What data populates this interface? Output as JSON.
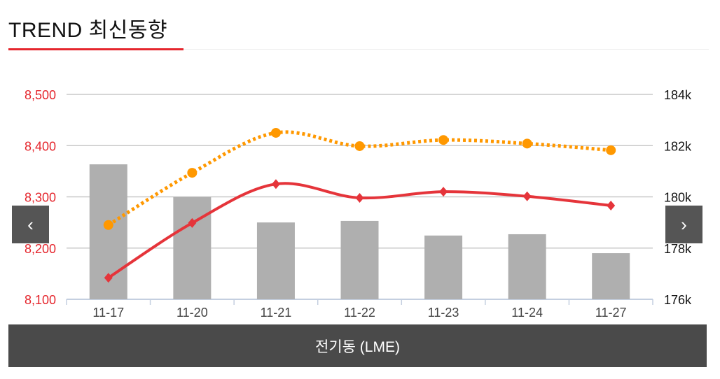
{
  "header": {
    "title": "TREND 최신동향"
  },
  "footer": {
    "label": "전기동 (LME)"
  },
  "nav": {
    "prev_icon": "‹",
    "next_icon": "›"
  },
  "colors": {
    "line1": "#e5343a",
    "line2": "#ff9800",
    "bar": "#afafaf",
    "left_axis": "#e5262d"
  },
  "chart_data": {
    "type": "bar+line",
    "categories": [
      "11-17",
      "11-20",
      "11-21",
      "11-22",
      "11-23",
      "11-24",
      "11-27"
    ],
    "left_axis": {
      "ticks": [
        "8,100",
        "8,200",
        "8,300",
        "8,400",
        "8,500"
      ],
      "range": [
        8100,
        8500
      ]
    },
    "right_axis": {
      "ticks": [
        "176k",
        "178k",
        "180k",
        "182k",
        "184k"
      ],
      "range": [
        176000,
        184000
      ]
    },
    "series": [
      {
        "name": "bar",
        "type": "bar",
        "axis": "right",
        "values": [
          181270,
          179990,
          179000,
          179060,
          178490,
          178540,
          177800
        ]
      },
      {
        "name": "line-red",
        "type": "line",
        "axis": "left",
        "values": [
          8142,
          8249,
          8325,
          8298,
          8310,
          8301,
          8283
        ]
      },
      {
        "name": "line-orange",
        "type": "line-dotted",
        "axis": "left",
        "values": [
          8245,
          8347,
          8425,
          8399,
          8411,
          8404,
          8391
        ]
      }
    ],
    "grid": true
  }
}
